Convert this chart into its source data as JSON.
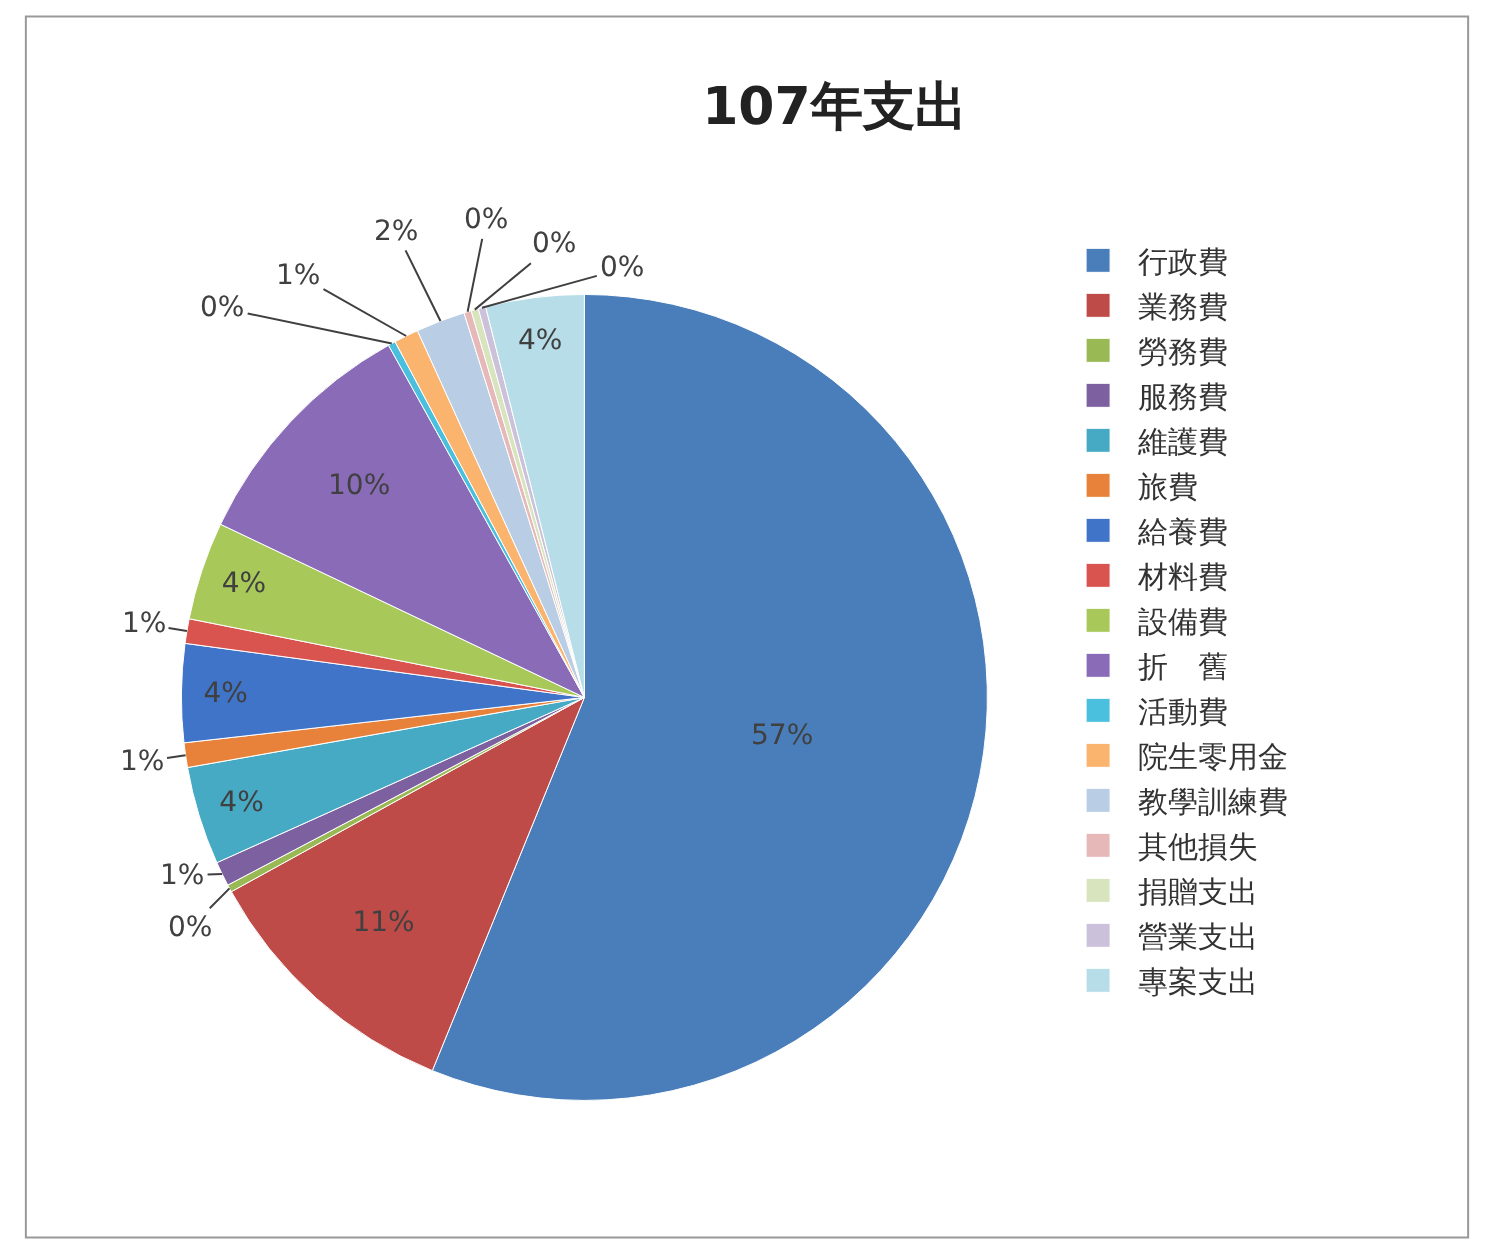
{
  "chart_data": {
    "type": "pie",
    "title": "107年支出",
    "categories": [
      "行政費",
      "業務費",
      "勞務費",
      "服務費",
      "維護費",
      "旅費",
      "給養費",
      "材料費",
      "設備費",
      "折　舊",
      "活動費",
      "院生零用金",
      "教學訓練費",
      "其他損失",
      "捐贈支出",
      "營業支出",
      "專案支出"
    ],
    "values": [
      57,
      11,
      0.3,
      1,
      4,
      1,
      4,
      1,
      4,
      10,
      0.3,
      1,
      2,
      0.3,
      0.3,
      0.3,
      4
    ],
    "value_labels": [
      "57%",
      "11%",
      "0%",
      "1%",
      "4%",
      "1%",
      "4%",
      "1%",
      "4%",
      "10%",
      "0%",
      "1%",
      "2%",
      "0%",
      "0%",
      "0%",
      "4%"
    ],
    "colors": [
      "#4a7ebb",
      "#be4b48",
      "#98b954",
      "#7d60a0",
      "#46aac5",
      "#e8823a",
      "#3f74c8",
      "#d9534f",
      "#a8c95a",
      "#8a6bb8",
      "#4bc0de",
      "#fbb46e",
      "#b9cde5",
      "#e6b9b8",
      "#d7e4bd",
      "#ccc1da",
      "#b7dee8"
    ],
    "legend": "right"
  }
}
